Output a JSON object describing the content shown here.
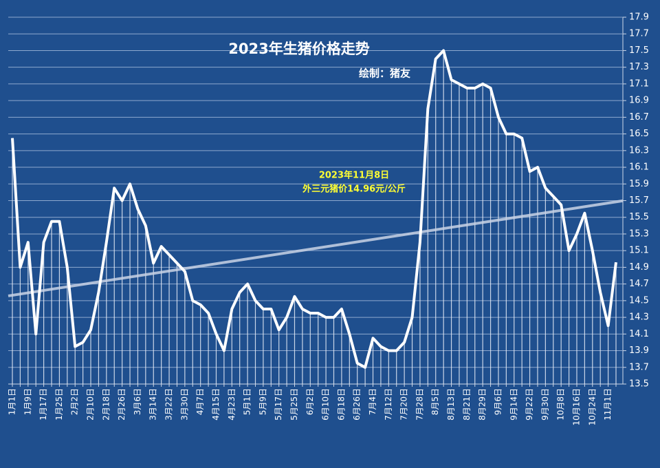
{
  "chart_data": {
    "type": "line",
    "title": "2023年生猪价格走势",
    "subtitle": "绘制：猪友",
    "annotation": [
      "2023年11月8日",
      "外三元猪价14.96元/公斤"
    ],
    "categories": [
      "1月1日",
      null,
      "1月9日",
      null,
      "1月17日",
      null,
      "1月25日",
      null,
      "2月2日",
      null,
      "2月10日",
      null,
      "2月18日",
      null,
      "2月26日",
      null,
      "3月6日",
      null,
      "3月14日",
      null,
      "3月22日",
      null,
      "3月30日",
      null,
      "4月7日",
      null,
      "4月15日",
      null,
      "4月23日",
      null,
      "5月1日",
      null,
      "5月9日",
      null,
      "5月17日",
      null,
      "5月25日",
      null,
      "6月2日",
      null,
      "6月10日",
      null,
      "6月18日",
      null,
      "6月26日",
      null,
      "7月4日",
      null,
      "7月12日",
      null,
      "7月20日",
      null,
      "7月28日",
      null,
      "8月5日",
      null,
      "8月13日",
      null,
      "8月21日",
      null,
      "8月29日",
      null,
      "9月6日",
      null,
      "9月14日",
      null,
      "9月22日",
      null,
      "9月30日",
      null,
      "10月8日",
      null,
      "10月16日",
      null,
      "10月24日",
      null,
      "11月1日",
      null
    ],
    "values": [
      16.45,
      14.9,
      15.2,
      14.1,
      15.2,
      15.45,
      15.45,
      14.9,
      13.95,
      14.0,
      14.15,
      14.6,
      15.2,
      15.85,
      15.7,
      15.9,
      15.6,
      15.4,
      14.95,
      15.15,
      15.05,
      14.95,
      14.85,
      14.5,
      14.45,
      14.35,
      14.1,
      13.9,
      14.4,
      14.6,
      14.7,
      14.5,
      14.4,
      14.4,
      14.15,
      14.3,
      14.55,
      14.4,
      14.35,
      14.35,
      14.3,
      14.3,
      14.4,
      14.1,
      13.75,
      13.7,
      14.05,
      13.95,
      13.9,
      13.9,
      14.0,
      14.3,
      15.2,
      16.8,
      17.4,
      17.5,
      17.15,
      17.1,
      17.05,
      17.05,
      17.1,
      17.05,
      16.7,
      16.5,
      16.5,
      16.45,
      16.05,
      16.1,
      15.85,
      15.75,
      15.65,
      15.1,
      15.3,
      15.55,
      15.1,
      14.6,
      14.2,
      14.96
    ],
    "color": "#ffffff",
    "ylim": [
      13.5,
      17.9
    ],
    "yticks": [
      13.5,
      13.7,
      13.9,
      14.1,
      14.3,
      14.5,
      14.7,
      14.9,
      15.1,
      15.3,
      15.5,
      15.7,
      15.9,
      16.1,
      16.3,
      16.5,
      16.7,
      16.9,
      17.1,
      17.3,
      17.5,
      17.7,
      17.9
    ],
    "grid": true,
    "drop_lines": true,
    "trendline": true
  }
}
